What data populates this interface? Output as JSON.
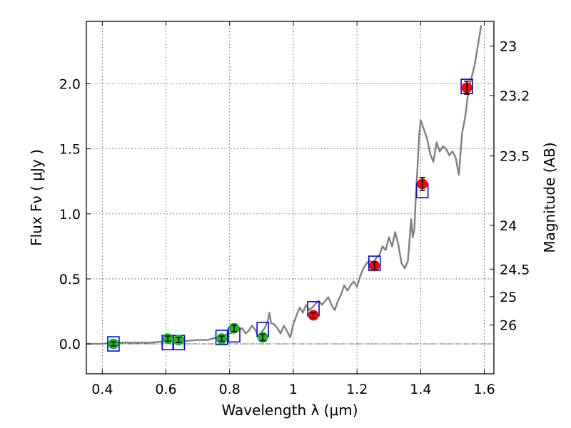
{
  "chart_data": {
    "type": "scatter",
    "xlabel": "Wavelength  λ (μm)",
    "ylabel_left": "Flux  Fν  ( μJy )",
    "ylabel_right": "Magnitude (AB)",
    "xlim": [
      0.35,
      1.63
    ],
    "ylim": [
      -0.23,
      2.48
    ],
    "x_ticks": [
      {
        "value": 0.4,
        "label": "0.4"
      },
      {
        "value": 0.6,
        "label": "0.6"
      },
      {
        "value": 0.8,
        "label": "0.8"
      },
      {
        "value": 1.0,
        "label": "1"
      },
      {
        "value": 1.2,
        "label": "1.2"
      },
      {
        "value": 1.4,
        "label": "1.4"
      },
      {
        "value": 1.6,
        "label": "1.6"
      }
    ],
    "y_ticks": [
      {
        "value": 0.0,
        "label": "0.0"
      },
      {
        "value": 0.5,
        "label": "0.5"
      },
      {
        "value": 1.0,
        "label": "1.0"
      },
      {
        "value": 1.5,
        "label": "1.5"
      },
      {
        "value": 2.0,
        "label": "2.0"
      }
    ],
    "right_ticks": [
      {
        "label": "23",
        "flux": 2.29
      },
      {
        "label": "23.2",
        "flux": 1.91
      },
      {
        "label": "23.5",
        "flux": 1.445
      },
      {
        "label": "24",
        "flux": 0.912
      },
      {
        "label": "24.5",
        "flux": 0.575
      },
      {
        "label": "25",
        "flux": 0.363
      },
      {
        "label": "26",
        "flux": 0.145
      }
    ],
    "grid": true,
    "zero_line": true,
    "colors": {
      "model": "#808080",
      "optical": "#1fb51f",
      "nir": "#ff0000",
      "model_box": "#0000ff",
      "errorbar": "#000000"
    },
    "series": [
      {
        "kind": "model_spectrum",
        "x": [
          0.35,
          0.4,
          0.43,
          0.46,
          0.5,
          0.55,
          0.6,
          0.65,
          0.7,
          0.73,
          0.76,
          0.78,
          0.8,
          0.82,
          0.84,
          0.85,
          0.86,
          0.87,
          0.88,
          0.89,
          0.9,
          0.91,
          0.92,
          0.925,
          0.93,
          0.94,
          0.95,
          0.96,
          0.97,
          0.98,
          0.99,
          1.0,
          1.01,
          1.02,
          1.03,
          1.04,
          1.05,
          1.06,
          1.07,
          1.08,
          1.09,
          1.1,
          1.11,
          1.12,
          1.13,
          1.14,
          1.15,
          1.16,
          1.17,
          1.18,
          1.19,
          1.2,
          1.21,
          1.22,
          1.23,
          1.24,
          1.25,
          1.26,
          1.27,
          1.28,
          1.29,
          1.3,
          1.31,
          1.32,
          1.33,
          1.34,
          1.35,
          1.36,
          1.37,
          1.375,
          1.38,
          1.385,
          1.39,
          1.395,
          1.4,
          1.41,
          1.42,
          1.43,
          1.44,
          1.45,
          1.46,
          1.47,
          1.48,
          1.49,
          1.5,
          1.51,
          1.52,
          1.53,
          1.54,
          1.55,
          1.56,
          1.57,
          1.58,
          1.59
        ],
        "y": [
          0.0,
          0.0,
          0.01,
          0.01,
          0.01,
          0.01,
          0.02,
          0.02,
          0.03,
          0.03,
          0.05,
          0.06,
          0.08,
          0.1,
          0.12,
          0.08,
          0.1,
          0.14,
          0.11,
          0.06,
          0.09,
          0.12,
          0.18,
          0.24,
          0.16,
          0.15,
          0.12,
          0.08,
          0.14,
          0.1,
          0.05,
          0.15,
          0.22,
          0.28,
          0.24,
          0.3,
          0.26,
          0.28,
          0.31,
          0.33,
          0.3,
          0.33,
          0.36,
          0.3,
          0.26,
          0.33,
          0.38,
          0.45,
          0.41,
          0.45,
          0.48,
          0.44,
          0.52,
          0.58,
          0.62,
          0.64,
          0.62,
          0.66,
          0.68,
          0.75,
          0.72,
          0.82,
          0.75,
          0.86,
          0.76,
          0.62,
          0.58,
          0.64,
          0.96,
          0.82,
          0.88,
          1.15,
          1.35,
          1.6,
          1.72,
          1.65,
          1.58,
          1.46,
          1.4,
          1.55,
          1.48,
          1.52,
          1.5,
          1.45,
          1.48,
          1.43,
          1.3,
          1.62,
          1.75,
          1.95,
          2.05,
          2.15,
          2.3,
          2.45
        ]
      },
      {
        "kind": "model_photometry",
        "x": [
          0.435,
          0.606,
          0.64,
          0.775,
          0.814,
          0.904,
          1.063,
          1.255,
          1.405,
          1.545
        ],
        "y": [
          0.0,
          0.01,
          0.01,
          0.05,
          0.07,
          0.11,
          0.27,
          0.62,
          1.18,
          1.98
        ]
      },
      {
        "kind": "observed_optical",
        "x": [
          0.435,
          0.606,
          0.64,
          0.775,
          0.814,
          0.904
        ],
        "y": [
          0.0,
          0.04,
          0.03,
          0.04,
          0.12,
          0.05
        ],
        "err": [
          0.015,
          0.02,
          0.02,
          0.02,
          0.025,
          0.025
        ]
      },
      {
        "kind": "observed_nir",
        "x": [
          1.063,
          1.255,
          1.405,
          1.545
        ],
        "y": [
          0.22,
          0.6,
          1.23,
          1.97
        ],
        "err": [
          0.02,
          0.03,
          0.05,
          0.05
        ]
      }
    ]
  }
}
